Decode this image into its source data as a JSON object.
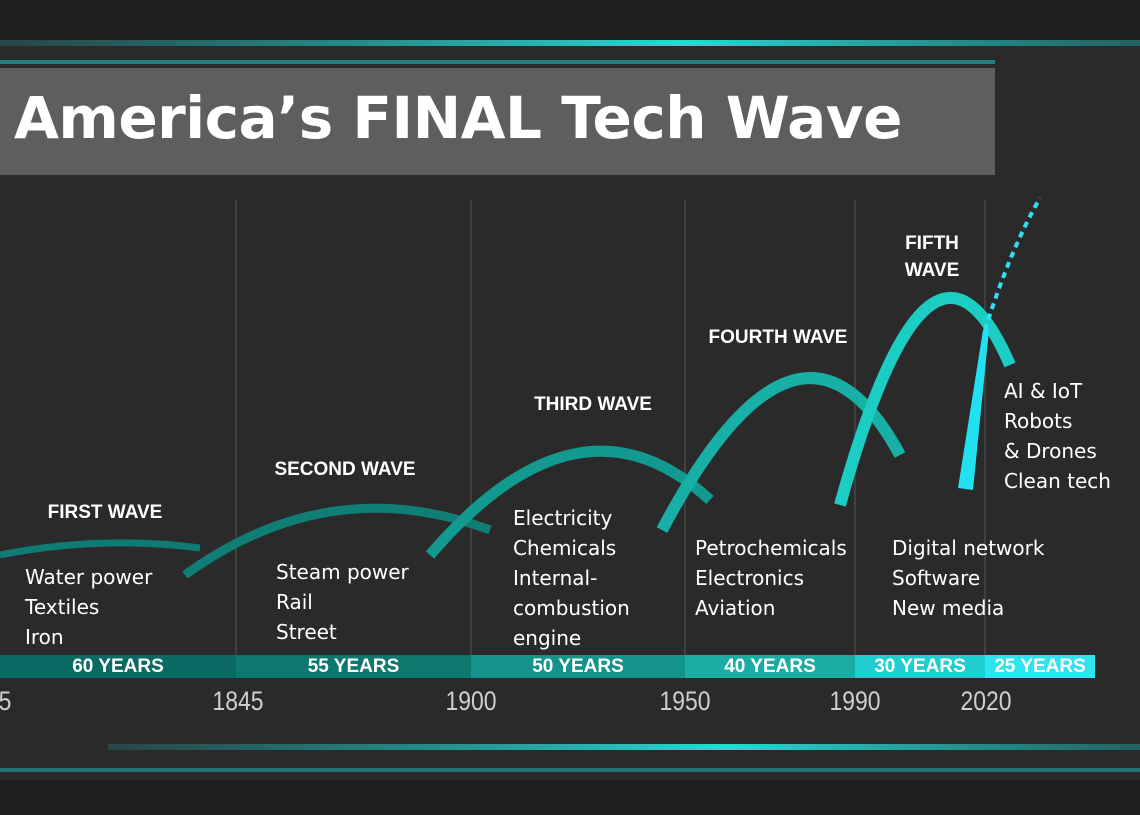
{
  "title": "America’s FINAL Tech Wave",
  "waves": [
    {
      "name": "FIRST WAVE",
      "items": [
        "Water power",
        "Textiles",
        "Iron"
      ],
      "duration": "60 YEARS"
    },
    {
      "name": "SECOND WAVE",
      "items": [
        "Steam power",
        "Rail",
        "Street"
      ],
      "duration": "55 YEARS"
    },
    {
      "name": "THIRD WAVE",
      "items": [
        "Electricity",
        "Chemicals",
        "Internal-",
        "combustion",
        "engine"
      ],
      "duration": "50 YEARS"
    },
    {
      "name": "FOURTH WAVE",
      "items": [
        "Petrochemicals",
        "Electronics",
        "Aviation"
      ],
      "duration": "40 YEARS"
    },
    {
      "name": "FIFTH WAVE",
      "items": [
        "Digital network",
        "Software",
        "New media"
      ],
      "duration": "30 YEARS"
    },
    {
      "items": [
        "AI & IoT",
        "Robots",
        "& Drones",
        "Clean tech"
      ],
      "duration": "25 YEARS"
    }
  ],
  "years": [
    "5",
    "1845",
    "1900",
    "1950",
    "1990",
    "2020"
  ]
}
